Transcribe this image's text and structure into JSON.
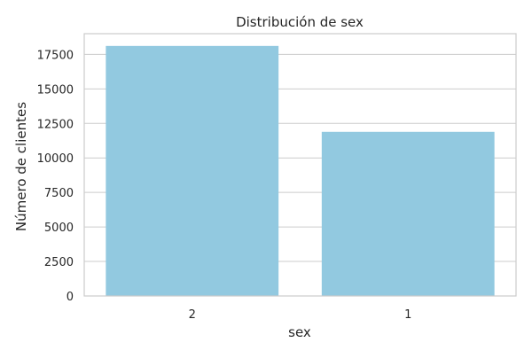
{
  "chart_data": {
    "type": "bar",
    "title": "Distribución de sex",
    "xlabel": "sex",
    "ylabel": "Número de clientes",
    "categories": [
      "2",
      "1"
    ],
    "values": [
      18112,
      11888
    ],
    "ylim": [
      0,
      19000
    ],
    "yticks": [
      0,
      2500,
      5000,
      7500,
      10000,
      12500,
      15000,
      17500
    ],
    "ytick_labels": [
      "0",
      "2500",
      "5000",
      "7500",
      "10000",
      "12500",
      "15000",
      "17500"
    ],
    "grid": true,
    "legend": "none",
    "colors": {
      "bar": "#92c9e0",
      "grid": "#cccccc",
      "frame": "#cccccc",
      "text": "#262626"
    }
  }
}
